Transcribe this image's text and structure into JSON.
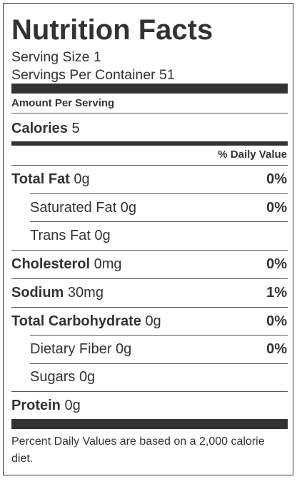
{
  "title": "Nutrition Facts",
  "serving_size": "Serving Size 1",
  "servings_per_container": "Servings Per Container 51",
  "amount_per_serving": "Amount Per Serving",
  "calories": {
    "label": "Calories",
    "value": "5"
  },
  "daily_value_header": "% Daily Value",
  "nutrients": {
    "total_fat": {
      "label": "Total Fat",
      "amount": "0g",
      "pct": "0%"
    },
    "saturated_fat": {
      "label": "Saturated Fat",
      "amount": "0g",
      "pct": "0%"
    },
    "trans_fat": {
      "label": "Trans Fat",
      "amount": "0g"
    },
    "cholesterol": {
      "label": "Cholesterol",
      "amount": "0mg",
      "pct": "0%"
    },
    "sodium": {
      "label": "Sodium",
      "amount": "30mg",
      "pct": "1%"
    },
    "total_carbohydrate": {
      "label": "Total Carbohydrate",
      "amount": "0g",
      "pct": "0%"
    },
    "dietary_fiber": {
      "label": "Dietary Fiber",
      "amount": "0g",
      "pct": "0%"
    },
    "sugars": {
      "label": "Sugars",
      "amount": "0g"
    },
    "protein": {
      "label": "Protein",
      "amount": "0g"
    }
  },
  "footer": "Percent Daily Values are based on a 2,000 calorie diet."
}
